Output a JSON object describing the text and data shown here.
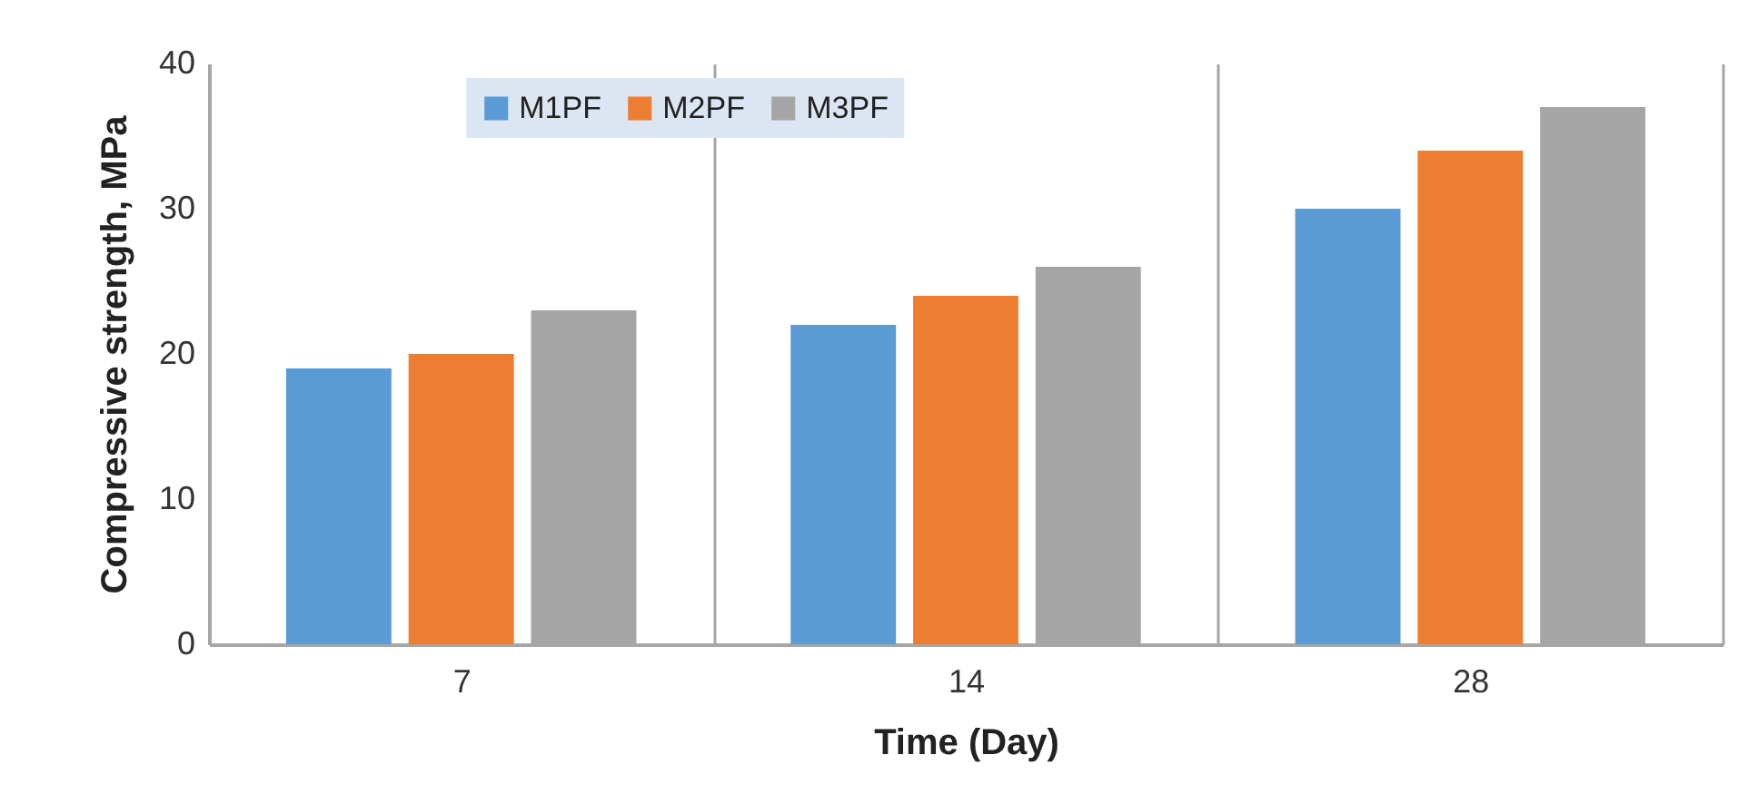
{
  "chart_data": {
    "type": "bar",
    "xlabel": "Time (Day)",
    "ylabel": "Compressive strength, MPa",
    "categories": [
      "7",
      "14",
      "28"
    ],
    "series": [
      {
        "name": "M1PF",
        "color": "#5b9bd5",
        "values": [
          19,
          22,
          30
        ]
      },
      {
        "name": "M2PF",
        "color": "#ed7d31",
        "values": [
          20,
          24,
          34
        ]
      },
      {
        "name": "M3PF",
        "color": "#a5a5a5",
        "values": [
          23,
          26,
          37
        ]
      }
    ],
    "ylim": [
      0,
      40
    ],
    "yticks": [
      0,
      10,
      20,
      30,
      40
    ],
    "grid": "x",
    "legend": "top left"
  }
}
